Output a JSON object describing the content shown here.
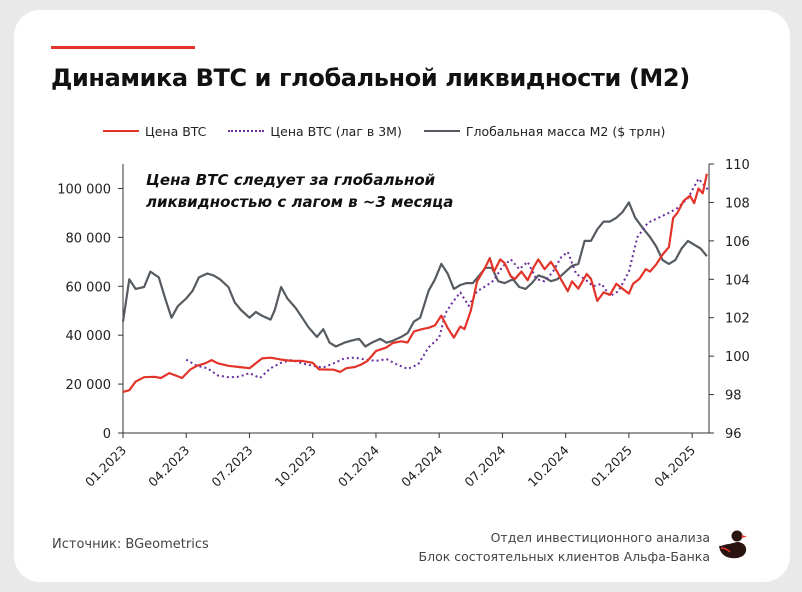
{
  "title": "Динамика BTC и глобальной ликвидности (M2)",
  "legend": [
    {
      "label": "Цена BTC",
      "style": "solid",
      "color": "#e3342a"
    },
    {
      "label": "Цена BTC (лаг в 3М)",
      "style": "dotted",
      "color": "#6a2d9e"
    },
    {
      "label": "Глобальная масса М2 ($ трлн)",
      "style": "solid",
      "color": "#555b60"
    }
  ],
  "annotation": {
    "line1": "Цена BTC следует за глобальной",
    "line2": "ликвидностью с лагом в ~3 месяца"
  },
  "source": "Источник: BGeometrics",
  "org": {
    "line1": "Отдел инвестиционного анализа",
    "line2": "Блок состоятельных клиентов Альфа-Банка"
  },
  "logo_icon": "duck-icon",
  "chart_data": {
    "type": "line",
    "x_ticks": [
      "01.2023",
      "04.2023",
      "07.2023",
      "10.2023",
      "01.2024",
      "04.2024",
      "07.2024",
      "10.2024",
      "01.2025",
      "04.2025"
    ],
    "y_left": {
      "ticks": [
        "0",
        "20 000",
        "40 000",
        "60 000",
        "80 000",
        "100 000"
      ],
      "range": [
        0,
        110000
      ]
    },
    "y_right": {
      "ticks": [
        "96",
        "98",
        "100",
        "102",
        "104",
        "106",
        "108",
        "110"
      ],
      "range": [
        96,
        110
      ]
    },
    "x_range": [
      0,
      27.8
    ],
    "series": [
      {
        "name": "Цена BTC",
        "axis": "left",
        "color": "#e3342a",
        "style": "solid",
        "points": [
          [
            0,
            16800
          ],
          [
            0.3,
            17500
          ],
          [
            0.6,
            21000
          ],
          [
            1,
            22800
          ],
          [
            1.5,
            23000
          ],
          [
            1.8,
            22500
          ],
          [
            2.2,
            24500
          ],
          [
            2.5,
            23500
          ],
          [
            2.8,
            22500
          ],
          [
            3.2,
            26000
          ],
          [
            3.5,
            27500
          ],
          [
            3.9,
            28500
          ],
          [
            4.2,
            29800
          ],
          [
            4.5,
            28500
          ],
          [
            5,
            27500
          ],
          [
            5.5,
            27000
          ],
          [
            6,
            26500
          ],
          [
            6.3,
            28500
          ],
          [
            6.6,
            30500
          ],
          [
            7,
            30800
          ],
          [
            7.5,
            30000
          ],
          [
            8,
            29500
          ],
          [
            8.5,
            29500
          ],
          [
            9,
            28700
          ],
          [
            9.3,
            26000
          ],
          [
            10,
            25900
          ],
          [
            10.3,
            25000
          ],
          [
            10.6,
            26500
          ],
          [
            11,
            27000
          ],
          [
            11.3,
            28000
          ],
          [
            11.6,
            29500
          ],
          [
            12,
            33500
          ],
          [
            12.5,
            35000
          ],
          [
            12.8,
            36800
          ],
          [
            13.2,
            37500
          ],
          [
            13.5,
            37000
          ],
          [
            13.8,
            41500
          ],
          [
            14.2,
            42500
          ],
          [
            14.5,
            43000
          ],
          [
            14.8,
            44000
          ],
          [
            15.1,
            48000
          ],
          [
            15.4,
            43000
          ],
          [
            15.7,
            39000
          ],
          [
            16,
            43500
          ],
          [
            16.2,
            42500
          ],
          [
            16.5,
            50000
          ],
          [
            16.8,
            62000
          ],
          [
            17.2,
            68000
          ],
          [
            17.4,
            71500
          ],
          [
            17.6,
            66000
          ],
          [
            17.9,
            71000
          ],
          [
            18.1,
            69500
          ],
          [
            18.4,
            64000
          ],
          [
            18.6,
            63000
          ],
          [
            18.9,
            66000
          ],
          [
            19.2,
            62500
          ],
          [
            19.5,
            68000
          ],
          [
            19.7,
            71000
          ],
          [
            20,
            67000
          ],
          [
            20.3,
            70000
          ],
          [
            20.6,
            66000
          ],
          [
            20.8,
            62500
          ],
          [
            21.1,
            58000
          ],
          [
            21.3,
            62000
          ],
          [
            21.6,
            59000
          ],
          [
            22,
            65000
          ],
          [
            22.2,
            63000
          ],
          [
            22.5,
            54000
          ],
          [
            22.8,
            57500
          ],
          [
            23.1,
            56500
          ],
          [
            23.4,
            61000
          ],
          [
            23.7,
            59000
          ],
          [
            24,
            57000
          ],
          [
            24.2,
            61000
          ],
          [
            24.5,
            63000
          ],
          [
            24.8,
            67000
          ],
          [
            25,
            66000
          ],
          [
            25.3,
            69000
          ],
          [
            25.6,
            73000
          ],
          [
            25.9,
            76000
          ],
          [
            26.1,
            88000
          ],
          [
            26.3,
            90000
          ],
          [
            26.6,
            95000
          ],
          [
            26.9,
            97000
          ],
          [
            27.1,
            94000
          ],
          [
            27.3,
            100000
          ],
          [
            27.5,
            98000
          ],
          [
            27.7,
            106000
          ]
        ]
      },
      {
        "name": "Цена BTC (лаг в 3М)",
        "axis": "left",
        "color": "#6a2d9e",
        "style": "dotted",
        "points": [
          [
            3,
            30000
          ],
          [
            3.5,
            27500
          ],
          [
            4,
            26500
          ],
          [
            4.5,
            23500
          ],
          [
            5,
            22800
          ],
          [
            5.5,
            23000
          ],
          [
            6,
            24500
          ],
          [
            6.5,
            22500
          ],
          [
            7,
            26500
          ],
          [
            7.5,
            28700
          ],
          [
            8,
            29800
          ],
          [
            8.5,
            28500
          ],
          [
            9,
            27500
          ],
          [
            9.5,
            26800
          ],
          [
            10,
            28500
          ],
          [
            10.5,
            30500
          ],
          [
            11,
            30800
          ],
          [
            11.5,
            30000
          ],
          [
            12,
            29500
          ],
          [
            12.5,
            30200
          ],
          [
            13,
            28000
          ],
          [
            13.5,
            26200
          ],
          [
            14,
            28000
          ],
          [
            14.5,
            35000
          ],
          [
            15,
            39000
          ],
          [
            15.3,
            49000
          ],
          [
            15.6,
            53000
          ],
          [
            16,
            57500
          ],
          [
            16.4,
            52000
          ],
          [
            16.8,
            58000
          ],
          [
            17.2,
            60000
          ],
          [
            17.6,
            62500
          ],
          [
            18,
            68000
          ],
          [
            18.4,
            71000
          ],
          [
            18.8,
            67000
          ],
          [
            19.2,
            70000
          ],
          [
            19.6,
            63000
          ],
          [
            20,
            62000
          ],
          [
            20.4,
            66000
          ],
          [
            20.8,
            72000
          ],
          [
            21.1,
            74000
          ],
          [
            21.5,
            65000
          ],
          [
            21.9,
            63000
          ],
          [
            22.3,
            60000
          ],
          [
            22.7,
            61000
          ],
          [
            23.1,
            56000
          ],
          [
            23.5,
            58000
          ],
          [
            24,
            66000
          ],
          [
            24.4,
            80000
          ],
          [
            24.9,
            86000
          ],
          [
            25.4,
            88000
          ],
          [
            25.9,
            90000
          ],
          [
            26.3,
            92000
          ],
          [
            26.8,
            96000
          ],
          [
            27.3,
            104000
          ],
          [
            27.8,
            99000
          ]
        ]
      },
      {
        "name": "Глобальная масса М2 ($ трлн)",
        "axis": "right",
        "color": "#555b60",
        "style": "solid",
        "points": [
          [
            0,
            101.8
          ],
          [
            0.3,
            104.0
          ],
          [
            0.6,
            103.5
          ],
          [
            1,
            103.6
          ],
          [
            1.3,
            104.4
          ],
          [
            1.7,
            104.1
          ],
          [
            2,
            103.0
          ],
          [
            2.3,
            102.0
          ],
          [
            2.6,
            102.6
          ],
          [
            3,
            103.0
          ],
          [
            3.3,
            103.4
          ],
          [
            3.6,
            104.1
          ],
          [
            4,
            104.3
          ],
          [
            4.3,
            104.2
          ],
          [
            4.6,
            104.0
          ],
          [
            5,
            103.6
          ],
          [
            5.3,
            102.8
          ],
          [
            5.6,
            102.4
          ],
          [
            6,
            102.0
          ],
          [
            6.3,
            102.3
          ],
          [
            6.6,
            102.1
          ],
          [
            7,
            101.9
          ],
          [
            7.2,
            102.4
          ],
          [
            7.5,
            103.6
          ],
          [
            7.8,
            103.0
          ],
          [
            8.2,
            102.5
          ],
          [
            8.5,
            102.0
          ],
          [
            8.8,
            101.5
          ],
          [
            9.2,
            101.0
          ],
          [
            9.5,
            101.4
          ],
          [
            9.8,
            100.7
          ],
          [
            10.1,
            100.5
          ],
          [
            10.5,
            100.7
          ],
          [
            10.8,
            100.8
          ],
          [
            11.2,
            100.9
          ],
          [
            11.5,
            100.5
          ],
          [
            11.8,
            100.7
          ],
          [
            12.2,
            100.9
          ],
          [
            12.5,
            100.7
          ],
          [
            12.8,
            100.8
          ],
          [
            13.2,
            101.0
          ],
          [
            13.5,
            101.2
          ],
          [
            13.8,
            101.8
          ],
          [
            14.1,
            102.0
          ],
          [
            14.5,
            103.4
          ],
          [
            14.8,
            104.0
          ],
          [
            15.1,
            104.8
          ],
          [
            15.4,
            104.3
          ],
          [
            15.7,
            103.5
          ],
          [
            16,
            103.7
          ],
          [
            16.3,
            103.8
          ],
          [
            16.6,
            103.8
          ],
          [
            16.9,
            104.2
          ],
          [
            17.2,
            104.6
          ],
          [
            17.5,
            104.6
          ],
          [
            17.8,
            103.9
          ],
          [
            18.1,
            103.8
          ],
          [
            18.5,
            104.0
          ],
          [
            18.8,
            103.6
          ],
          [
            19.1,
            103.5
          ],
          [
            19.4,
            103.8
          ],
          [
            19.7,
            104.2
          ],
          [
            20,
            104.1
          ],
          [
            20.3,
            103.9
          ],
          [
            20.6,
            104.0
          ],
          [
            21,
            104.4
          ],
          [
            21.3,
            104.7
          ],
          [
            21.6,
            104.8
          ],
          [
            21.9,
            106.0
          ],
          [
            22.2,
            106.0
          ],
          [
            22.5,
            106.6
          ],
          [
            22.8,
            107.0
          ],
          [
            23.1,
            107.0
          ],
          [
            23.4,
            107.2
          ],
          [
            23.7,
            107.5
          ],
          [
            24,
            108.0
          ],
          [
            24.3,
            107.2
          ],
          [
            24.7,
            106.6
          ],
          [
            25,
            106.2
          ],
          [
            25.3,
            105.7
          ],
          [
            25.6,
            105.0
          ],
          [
            25.9,
            104.8
          ],
          [
            26.2,
            105.0
          ],
          [
            26.5,
            105.6
          ],
          [
            26.8,
            106.0
          ],
          [
            27.1,
            105.8
          ],
          [
            27.4,
            105.6
          ],
          [
            27.7,
            105.2
          ]
        ]
      }
    ],
    "grid": false,
    "legend_position": "top"
  }
}
